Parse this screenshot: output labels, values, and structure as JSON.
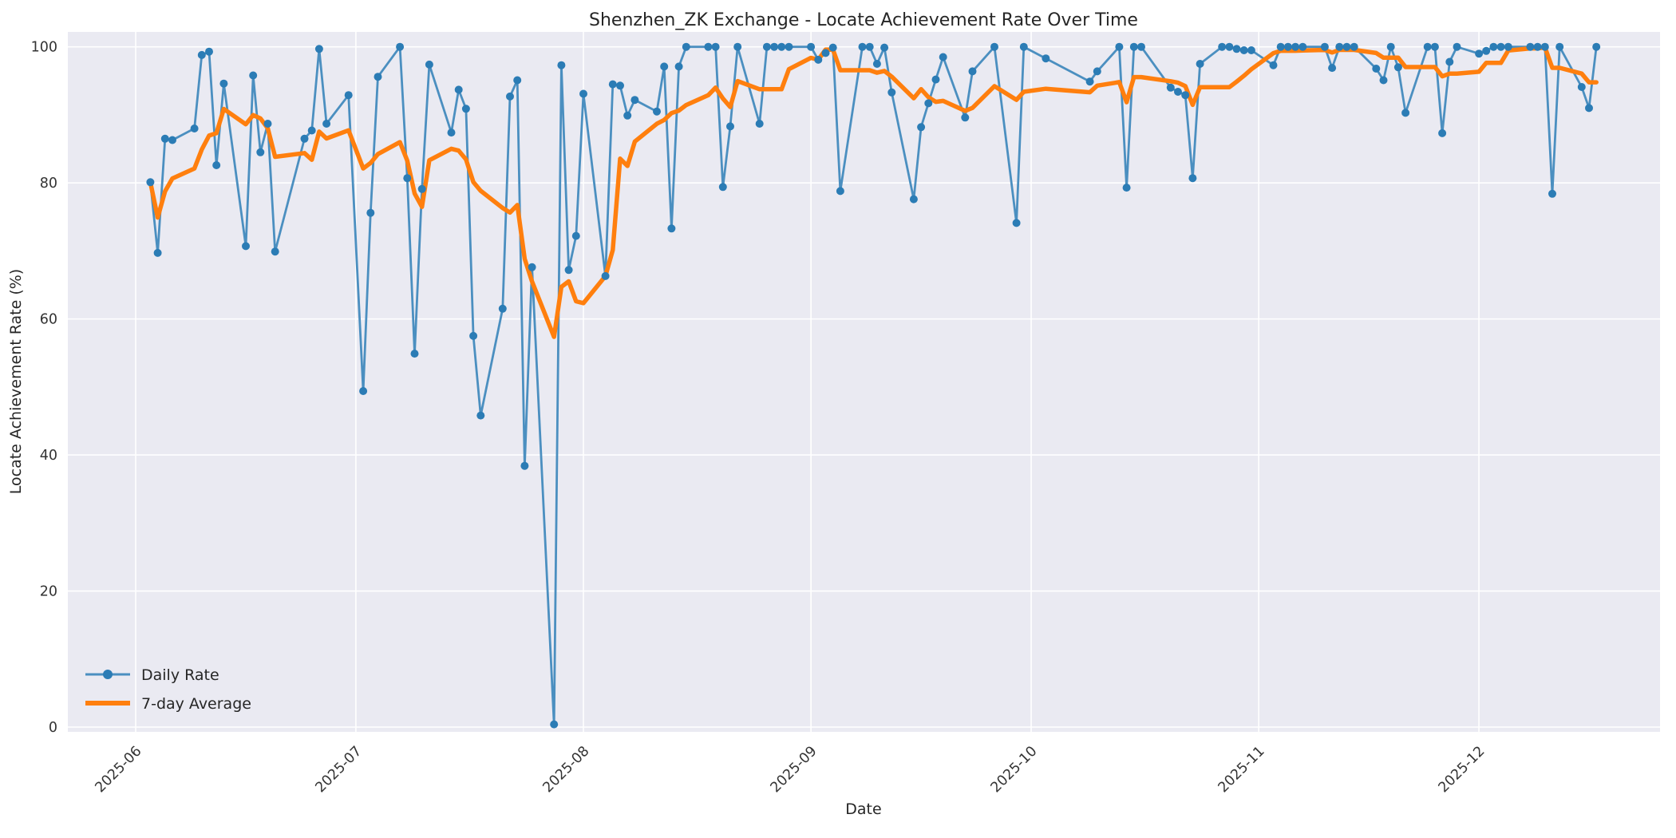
{
  "figure": {
    "title": "Shenzhen_ZK Exchange - Locate Achievement Rate Over Time",
    "xlabel": "Date",
    "ylabel": "Locate Achievement Rate (%)"
  },
  "style": {
    "figure_background": "#ffffff",
    "axes_background": "#eaeaf2",
    "grid_color": "#ffffff",
    "text_color": "#262626",
    "tick_color": "#333333",
    "daily_line_color": "#4b8fc0",
    "daily_marker_color": "#2b7cb5",
    "average_line_color": "#ff7f0e"
  },
  "chart_data": {
    "type": "line",
    "title": "Shenzhen_ZK Exchange - Locate Achievement Rate Over Time",
    "xlabel": "Date",
    "ylabel": "Locate Achievement Rate (%)",
    "grid": true,
    "legend_position": "lower left",
    "ylim": [
      0,
      100
    ],
    "y_ticks": [
      0,
      20,
      40,
      60,
      80,
      100
    ],
    "x_ticks": [
      "2025-06",
      "2025-07",
      "2025-08",
      "2025-09",
      "2025-10",
      "2025-11",
      "2025-12"
    ],
    "series": [
      {
        "name": "Daily Rate",
        "color": "#4b8fc0",
        "marker": "o",
        "marker_color": "#2b7cb5",
        "points": [
          [
            "2025-06-03",
            80.1
          ],
          [
            "2025-06-04",
            69.7
          ],
          [
            "2025-06-05",
            86.5
          ],
          [
            "2025-06-06",
            86.3
          ],
          [
            "2025-06-09",
            88.0
          ],
          [
            "2025-06-10",
            98.8
          ],
          [
            "2025-06-11",
            99.3
          ],
          [
            "2025-06-12",
            82.6
          ],
          [
            "2025-06-13",
            94.6
          ],
          [
            "2025-06-16",
            70.7
          ],
          [
            "2025-06-17",
            95.8
          ],
          [
            "2025-06-18",
            84.5
          ],
          [
            "2025-06-19",
            88.7
          ],
          [
            "2025-06-20",
            69.9
          ],
          [
            "2025-06-24",
            86.5
          ],
          [
            "2025-06-25",
            87.7
          ],
          [
            "2025-06-26",
            99.7
          ],
          [
            "2025-06-27",
            88.7
          ],
          [
            "2025-06-30",
            92.9
          ],
          [
            "2025-07-02",
            49.4
          ],
          [
            "2025-07-03",
            75.6
          ],
          [
            "2025-07-04",
            95.6
          ],
          [
            "2025-07-07",
            100.0
          ],
          [
            "2025-07-08",
            80.7
          ],
          [
            "2025-07-09",
            54.9
          ],
          [
            "2025-07-10",
            79.1
          ],
          [
            "2025-07-11",
            97.4
          ],
          [
            "2025-07-14",
            87.4
          ],
          [
            "2025-07-15",
            93.7
          ],
          [
            "2025-07-16",
            90.9
          ],
          [
            "2025-07-17",
            57.5
          ],
          [
            "2025-07-18",
            45.8
          ],
          [
            "2025-07-21",
            61.5
          ],
          [
            "2025-07-22",
            92.7
          ],
          [
            "2025-07-23",
            95.1
          ],
          [
            "2025-07-24",
            38.4
          ],
          [
            "2025-07-25",
            67.6
          ],
          [
            "2025-07-28",
            0.4
          ],
          [
            "2025-07-29",
            97.3
          ],
          [
            "2025-07-30",
            67.2
          ],
          [
            "2025-07-31",
            72.2
          ],
          [
            "2025-08-01",
            93.1
          ],
          [
            "2025-08-04",
            66.3
          ],
          [
            "2025-08-05",
            94.5
          ],
          [
            "2025-08-06",
            94.3
          ],
          [
            "2025-08-07",
            89.9
          ],
          [
            "2025-08-08",
            92.2
          ],
          [
            "2025-08-11",
            90.5
          ],
          [
            "2025-08-12",
            97.1
          ],
          [
            "2025-08-13",
            73.3
          ],
          [
            "2025-08-14",
            97.1
          ],
          [
            "2025-08-15",
            100.0
          ],
          [
            "2025-08-18",
            100.0
          ],
          [
            "2025-08-19",
            100.0
          ],
          [
            "2025-08-20",
            79.4
          ],
          [
            "2025-08-21",
            88.3
          ],
          [
            "2025-08-22",
            100.0
          ],
          [
            "2025-08-25",
            88.7
          ],
          [
            "2025-08-26",
            100.0
          ],
          [
            "2025-08-27",
            100.0
          ],
          [
            "2025-08-28",
            100.0
          ],
          [
            "2025-08-29",
            100.0
          ],
          [
            "2025-09-01",
            100.0
          ],
          [
            "2025-09-02",
            98.1
          ],
          [
            "2025-09-03",
            99.1
          ],
          [
            "2025-09-04",
            99.9
          ],
          [
            "2025-09-05",
            78.8
          ],
          [
            "2025-09-08",
            100.0
          ],
          [
            "2025-09-09",
            100.0
          ],
          [
            "2025-09-10",
            97.5
          ],
          [
            "2025-09-11",
            99.9
          ],
          [
            "2025-09-12",
            93.3
          ],
          [
            "2025-09-15",
            77.6
          ],
          [
            "2025-09-16",
            88.2
          ],
          [
            "2025-09-17",
            91.7
          ],
          [
            "2025-09-18",
            95.2
          ],
          [
            "2025-09-19",
            98.5
          ],
          [
            "2025-09-22",
            89.6
          ],
          [
            "2025-09-23",
            96.4
          ],
          [
            "2025-09-26",
            100.0
          ],
          [
            "2025-09-29",
            74.1
          ],
          [
            "2025-09-30",
            100.0
          ],
          [
            "2025-10-03",
            98.3
          ],
          [
            "2025-10-09",
            94.9
          ],
          [
            "2025-10-10",
            96.4
          ],
          [
            "2025-10-13",
            100.0
          ],
          [
            "2025-10-14",
            79.3
          ],
          [
            "2025-10-15",
            100.0
          ],
          [
            "2025-10-16",
            100.0
          ],
          [
            "2025-10-20",
            94.0
          ],
          [
            "2025-10-21",
            93.4
          ],
          [
            "2025-10-22",
            92.9
          ],
          [
            "2025-10-23",
            80.7
          ],
          [
            "2025-10-24",
            97.5
          ],
          [
            "2025-10-27",
            100.0
          ],
          [
            "2025-10-28",
            100.0
          ],
          [
            "2025-10-29",
            99.7
          ],
          [
            "2025-10-30",
            99.5
          ],
          [
            "2025-10-31",
            99.5
          ],
          [
            "2025-11-03",
            97.3
          ],
          [
            "2025-11-04",
            100.0
          ],
          [
            "2025-11-05",
            100.0
          ],
          [
            "2025-11-06",
            100.0
          ],
          [
            "2025-11-07",
            100.0
          ],
          [
            "2025-11-10",
            100.0
          ],
          [
            "2025-11-11",
            96.9
          ],
          [
            "2025-11-12",
            100.0
          ],
          [
            "2025-11-13",
            100.0
          ],
          [
            "2025-11-14",
            100.0
          ],
          [
            "2025-11-17",
            96.8
          ],
          [
            "2025-11-18",
            95.1
          ],
          [
            "2025-11-19",
            100.0
          ],
          [
            "2025-11-20",
            97.0
          ],
          [
            "2025-11-21",
            90.3
          ],
          [
            "2025-11-24",
            100.0
          ],
          [
            "2025-11-25",
            100.0
          ],
          [
            "2025-11-26",
            87.3
          ],
          [
            "2025-11-27",
            97.8
          ],
          [
            "2025-11-28",
            100.0
          ],
          [
            "2025-12-01",
            99.0
          ],
          [
            "2025-12-02",
            99.4
          ],
          [
            "2025-12-03",
            100.0
          ],
          [
            "2025-12-04",
            100.0
          ],
          [
            "2025-12-05",
            100.0
          ],
          [
            "2025-12-08",
            100.0
          ],
          [
            "2025-12-09",
            100.0
          ],
          [
            "2025-12-10",
            100.0
          ],
          [
            "2025-12-11",
            78.4
          ],
          [
            "2025-12-12",
            100.0
          ],
          [
            "2025-12-15",
            94.1
          ],
          [
            "2025-12-16",
            91.0
          ],
          [
            "2025-12-17",
            100.0
          ]
        ]
      },
      {
        "name": "7-day Average",
        "color": "#ff7f0e",
        "derived_from": "Daily Rate",
        "derivation": "trailing rolling mean, window 7 points, min_periods 1"
      }
    ]
  }
}
